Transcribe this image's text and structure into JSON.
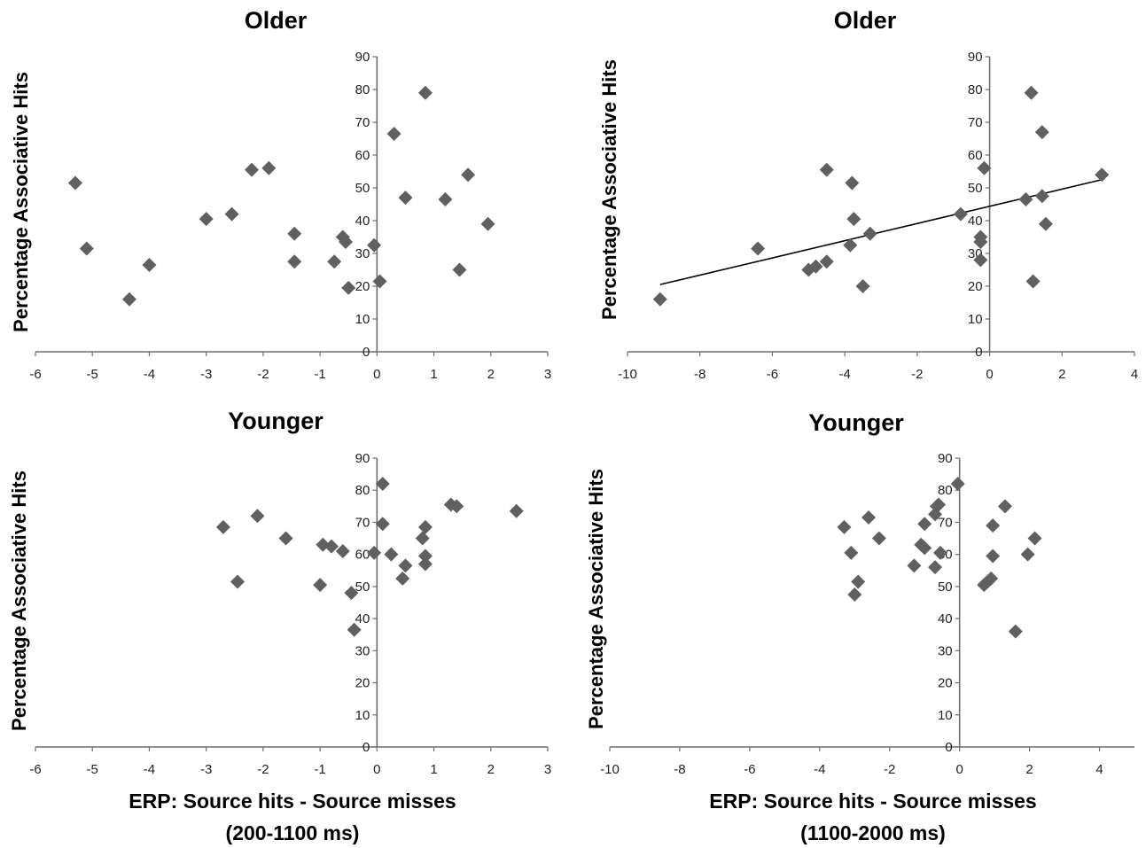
{
  "figure": {
    "x_caption": {
      "left": [
        "ERP: Source hits - Source misses",
        "(200-1100 ms)"
      ],
      "right": [
        "ERP: Source hits - Source misses",
        "(1100-2000 ms)"
      ]
    }
  },
  "chart_data": [
    {
      "type": "scatter",
      "title": "Older",
      "xlabel": "",
      "ylabel": "Percentage Associative Hits",
      "xlim": [
        -6,
        3
      ],
      "ylim": [
        0,
        90
      ],
      "xticks": [
        -6,
        -5,
        -4,
        -3,
        -2,
        -1,
        0,
        1,
        2,
        3
      ],
      "yticks": [
        0,
        10,
        20,
        30,
        40,
        50,
        60,
        70,
        80,
        90
      ],
      "marker": "diamond",
      "color": "#606060",
      "points": [
        [
          -5.3,
          51.5
        ],
        [
          -5.1,
          31.5
        ],
        [
          -4.35,
          16
        ],
        [
          -4.0,
          26.5
        ],
        [
          -3.0,
          40.5
        ],
        [
          -2.55,
          42
        ],
        [
          -2.2,
          55.5
        ],
        [
          -1.9,
          56
        ],
        [
          -1.45,
          36
        ],
        [
          -1.45,
          27.5
        ],
        [
          -0.75,
          27.5
        ],
        [
          -0.6,
          35
        ],
        [
          -0.55,
          33.5
        ],
        [
          -0.5,
          19.5
        ],
        [
          -0.05,
          32.5
        ],
        [
          0.05,
          21.5
        ],
        [
          0.3,
          66.5
        ],
        [
          0.5,
          47
        ],
        [
          0.85,
          79
        ],
        [
          1.2,
          46.5
        ],
        [
          1.45,
          25
        ],
        [
          1.6,
          54
        ],
        [
          1.95,
          39
        ]
      ]
    },
    {
      "type": "scatter",
      "title": "Older",
      "xlabel": "",
      "ylabel": "Percentage Associative Hits",
      "xlim": [
        -10,
        4
      ],
      "ylim": [
        0,
        90
      ],
      "xticks": [
        -10,
        -8,
        -6,
        -4,
        -2,
        0,
        2,
        4
      ],
      "yticks": [
        0,
        10,
        20,
        30,
        40,
        50,
        60,
        70,
        80,
        90
      ],
      "marker": "diamond",
      "color": "#606060",
      "trendline": {
        "x": [
          -9.1,
          3.1
        ],
        "y": [
          20.5,
          52.5
        ]
      },
      "points": [
        [
          -9.1,
          16
        ],
        [
          -6.4,
          31.5
        ],
        [
          -5.0,
          25
        ],
        [
          -4.8,
          26
        ],
        [
          -4.5,
          27.5
        ],
        [
          -4.5,
          55.5
        ],
        [
          -3.8,
          51.5
        ],
        [
          -3.75,
          40.5
        ],
        [
          -3.85,
          32.5
        ],
        [
          -3.5,
          20
        ],
        [
          -3.3,
          36
        ],
        [
          -0.8,
          42
        ],
        [
          -0.25,
          35
        ],
        [
          -0.25,
          33.5
        ],
        [
          -0.25,
          28
        ],
        [
          -0.15,
          56
        ],
        [
          1.0,
          46.5
        ],
        [
          1.15,
          79
        ],
        [
          1.2,
          21.5
        ],
        [
          1.45,
          47.5
        ],
        [
          1.45,
          67
        ],
        [
          1.55,
          39
        ],
        [
          3.1,
          54
        ]
      ]
    },
    {
      "type": "scatter",
      "title": "Younger",
      "xlabel": "",
      "ylabel": "Percentage Associative Hits",
      "xlim": [
        -6,
        3
      ],
      "ylim": [
        0,
        90
      ],
      "xticks": [
        -6,
        -5,
        -4,
        -3,
        -2,
        -1,
        0,
        1,
        2,
        3
      ],
      "yticks": [
        0,
        10,
        20,
        30,
        40,
        50,
        60,
        70,
        80,
        90
      ],
      "marker": "diamond",
      "color": "#606060",
      "points": [
        [
          -2.7,
          68.5
        ],
        [
          -2.45,
          51.5
        ],
        [
          -2.1,
          72
        ],
        [
          -1.6,
          65
        ],
        [
          -1.0,
          50.5
        ],
        [
          -0.95,
          63
        ],
        [
          -0.8,
          62.5
        ],
        [
          -0.6,
          61
        ],
        [
          -0.45,
          48
        ],
        [
          -0.4,
          36.5
        ],
        [
          -0.05,
          60.5
        ],
        [
          0.1,
          82
        ],
        [
          0.1,
          69.5
        ],
        [
          0.25,
          60
        ],
        [
          0.45,
          52.5
        ],
        [
          0.5,
          56.5
        ],
        [
          0.8,
          65
        ],
        [
          0.85,
          68.5
        ],
        [
          0.85,
          59.5
        ],
        [
          0.85,
          57
        ],
        [
          1.3,
          75.5
        ],
        [
          1.4,
          75
        ],
        [
          2.45,
          73.5
        ]
      ]
    },
    {
      "type": "scatter",
      "title": "Younger",
      "xlabel": "",
      "ylabel": "Percentage Associative Hits",
      "xlim": [
        -10,
        5
      ],
      "ylim": [
        0,
        90
      ],
      "xticks": [
        -10,
        -8,
        -6,
        -4,
        -2,
        0,
        2,
        4
      ],
      "yticks": [
        0,
        10,
        20,
        30,
        40,
        50,
        60,
        70,
        80,
        90
      ],
      "marker": "diamond",
      "color": "#606060",
      "points": [
        [
          -3.3,
          68.5
        ],
        [
          -3.1,
          60.5
        ],
        [
          -2.9,
          51.5
        ],
        [
          -3.0,
          47.5
        ],
        [
          -2.6,
          71.5
        ],
        [
          -2.3,
          65
        ],
        [
          -1.3,
          56.5
        ],
        [
          -1.1,
          63
        ],
        [
          -1.0,
          69.5
        ],
        [
          -1.0,
          62
        ],
        [
          -0.55,
          60.5
        ],
        [
          -0.7,
          56
        ],
        [
          -0.7,
          72.5
        ],
        [
          -0.6,
          75.5
        ],
        [
          -0.65,
          75
        ],
        [
          -0.05,
          82
        ],
        [
          0.7,
          50.5
        ],
        [
          0.8,
          51.5
        ],
        [
          0.9,
          52.5
        ],
        [
          0.95,
          69
        ],
        [
          0.95,
          59.5
        ],
        [
          1.3,
          75
        ],
        [
          1.6,
          36
        ],
        [
          1.95,
          60
        ],
        [
          2.15,
          65
        ]
      ]
    }
  ]
}
